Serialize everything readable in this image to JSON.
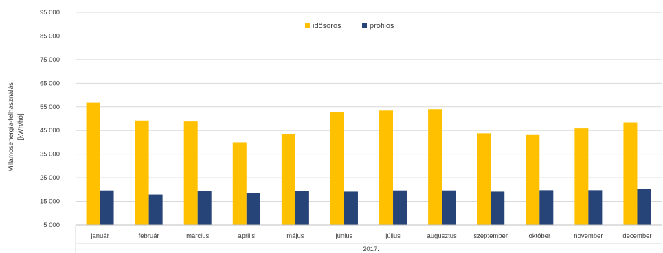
{
  "chart_data": {
    "type": "bar",
    "title": "",
    "ylabel_line1": "Villamosenergia-felhasználás",
    "ylabel_line2": "[kWh/hó]",
    "xlabel": "2017.",
    "ylim": [
      5000,
      95000
    ],
    "yticks": [
      5000,
      15000,
      25000,
      35000,
      45000,
      55000,
      65000,
      75000,
      85000,
      95000
    ],
    "ytick_labels": [
      "5 000",
      "15 000",
      "25 000",
      "35 000",
      "45 000",
      "55 000",
      "65 000",
      "75 000",
      "85 000",
      "95 000"
    ],
    "grid": true,
    "legend_position": "top-center",
    "categories": [
      "január",
      "február",
      "március",
      "április",
      "május",
      "június",
      "július",
      "augusztus",
      "szeptember",
      "október",
      "november",
      "december"
    ],
    "series": [
      {
        "name": "idősoros",
        "color": "#FFC000",
        "values": [
          56800,
          49200,
          48800,
          40000,
          43600,
          52600,
          53400,
          54000,
          43800,
          43100,
          45900,
          48400
        ]
      },
      {
        "name": "profilos",
        "color": "#264478",
        "values": [
          19600,
          17900,
          19400,
          18500,
          19500,
          19100,
          19600,
          19600,
          19100,
          19700,
          19700,
          20300
        ]
      }
    ]
  }
}
